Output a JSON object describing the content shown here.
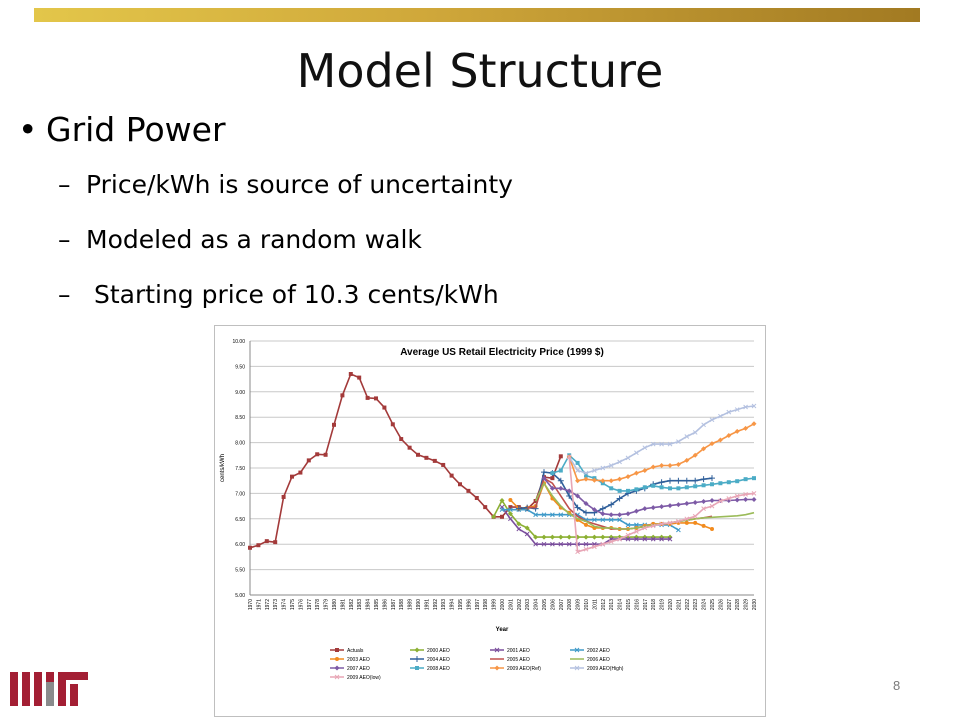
{
  "slide": {
    "title": "Model Structure",
    "bullet": "Grid Power",
    "subbullets": [
      "Price/kWh is source of uncertainty",
      "Modeled as a random walk",
      " Starting price of 10.3 cents/kWh"
    ],
    "page_number": "8",
    "bar_color": "#c9a53a",
    "logo_color": "#a31f34",
    "logo_gray": "#8a8b8c"
  },
  "chart_data": {
    "type": "line",
    "title": "Average  US Retail Electricity Price (1999 $)",
    "xlabel": "Year",
    "ylabel": "cents/kWh",
    "ylim": [
      5.0,
      10.0
    ],
    "yticks": [
      "5.00",
      "5.50",
      "6.00",
      "6.50",
      "7.00",
      "7.50",
      "8.00",
      "8.50",
      "9.00",
      "9.50",
      "10.00"
    ],
    "xlim": [
      1970,
      2030
    ],
    "xticks": [
      "1970",
      "1971",
      "1972",
      "1973",
      "1974",
      "1975",
      "1976",
      "1977",
      "1978",
      "1979",
      "1980",
      "1981",
      "1982",
      "1983",
      "1984",
      "1985",
      "1986",
      "1987",
      "1988",
      "1989",
      "1990",
      "1991",
      "1992",
      "1993",
      "1994",
      "1995",
      "1996",
      "1997",
      "1998",
      "1999",
      "2000",
      "2001",
      "2002",
      "2003",
      "2004",
      "2005",
      "2006",
      "2007",
      "2008",
      "2009",
      "2010",
      "2011",
      "2012",
      "2013",
      "2014",
      "2015",
      "2016",
      "2017",
      "2018",
      "2019",
      "2020",
      "2021",
      "2022",
      "2023",
      "2024",
      "2025",
      "2026",
      "2027",
      "2028",
      "2029",
      "2030"
    ],
    "grid": true,
    "legend_placement": "bottom",
    "series": [
      {
        "name": "Actuals",
        "color": "#a33a3a",
        "marker": "square",
        "x": [
          1970,
          1971,
          1972,
          1973,
          1974,
          1975,
          1976,
          1977,
          1978,
          1979,
          1980,
          1981,
          1982,
          1983,
          1984,
          1985,
          1986,
          1987,
          1988,
          1989,
          1990,
          1991,
          1992,
          1993,
          1994,
          1995,
          1996,
          1997,
          1998,
          1999,
          2000,
          2001,
          2002,
          2003,
          2004,
          2005,
          2006,
          2007
        ],
        "y": [
          5.93,
          5.98,
          6.06,
          6.04,
          6.93,
          7.33,
          7.41,
          7.65,
          7.77,
          7.76,
          8.35,
          8.93,
          9.35,
          9.28,
          8.88,
          8.87,
          8.69,
          8.36,
          8.07,
          7.9,
          7.76,
          7.7,
          7.64,
          7.56,
          7.35,
          7.18,
          7.05,
          6.91,
          6.73,
          6.54,
          6.54,
          6.73,
          6.73,
          6.69,
          6.85,
          7.32,
          7.3,
          7.73
        ]
      },
      {
        "name": "2000 AEO",
        "color": "#8cb033",
        "marker": "diamond",
        "x": [
          1999,
          2000,
          2001,
          2002,
          2003,
          2004,
          2005,
          2006,
          2007,
          2008,
          2009,
          2010,
          2011,
          2012,
          2013,
          2014,
          2015,
          2016,
          2017,
          2018,
          2019,
          2020
        ],
        "y": [
          6.54,
          6.86,
          6.6,
          6.4,
          6.32,
          6.14,
          6.14,
          6.14,
          6.14,
          6.14,
          6.14,
          6.14,
          6.14,
          6.14,
          6.14,
          6.14,
          6.14,
          6.14,
          6.14,
          6.14,
          6.14,
          6.14
        ]
      },
      {
        "name": "2001 AEO",
        "color": "#7a4e9c",
        "marker": "x",
        "x": [
          2000,
          2001,
          2002,
          2003,
          2004,
          2005,
          2006,
          2007,
          2008,
          2009,
          2010,
          2011,
          2012,
          2013,
          2014,
          2015,
          2016,
          2017,
          2018,
          2019,
          2020
        ],
        "y": [
          6.73,
          6.5,
          6.3,
          6.2,
          6.0,
          6.0,
          6.0,
          6.0,
          6.0,
          6.0,
          6.0,
          6.0,
          6.0,
          6.1,
          6.1,
          6.1,
          6.1,
          6.1,
          6.1,
          6.1,
          6.1
        ]
      },
      {
        "name": "2002 AEO",
        "color": "#3f9ac9",
        "marker": "x",
        "x": [
          2000,
          2001,
          2002,
          2003,
          2004,
          2005,
          2006,
          2007,
          2008,
          2009,
          2010,
          2011,
          2012,
          2013,
          2014,
          2015,
          2016,
          2017,
          2018,
          2019,
          2020,
          2021
        ],
        "y": [
          6.68,
          6.68,
          6.68,
          6.68,
          6.58,
          6.58,
          6.58,
          6.58,
          6.58,
          6.58,
          6.48,
          6.48,
          6.48,
          6.48,
          6.48,
          6.38,
          6.38,
          6.38,
          6.38,
          6.38,
          6.38,
          6.28
        ]
      },
      {
        "name": "2003 AEO",
        "color": "#f28b1e",
        "marker": "circle",
        "x": [
          2001,
          2002,
          2003,
          2004,
          2005,
          2006,
          2007,
          2008,
          2009,
          2010,
          2011,
          2012,
          2013,
          2014,
          2015,
          2016,
          2017,
          2018,
          2019,
          2020,
          2021,
          2022,
          2023,
          2024,
          2025
        ],
        "y": [
          6.87,
          6.7,
          6.72,
          6.75,
          7.2,
          6.9,
          6.72,
          6.62,
          6.48,
          6.38,
          6.32,
          6.32,
          6.32,
          6.3,
          6.3,
          6.32,
          6.36,
          6.4,
          6.4,
          6.4,
          6.42,
          6.42,
          6.42,
          6.36,
          6.3
        ]
      },
      {
        "name": "2004 AEO",
        "color": "#2f5f9a",
        "marker": "plus",
        "x": [
          2002,
          2003,
          2004,
          2005,
          2006,
          2007,
          2008,
          2009,
          2010,
          2011,
          2012,
          2013,
          2014,
          2015,
          2016,
          2017,
          2018,
          2019,
          2020,
          2021,
          2022,
          2023,
          2024,
          2025
        ],
        "y": [
          6.7,
          6.72,
          6.7,
          7.42,
          7.4,
          7.25,
          6.95,
          6.72,
          6.62,
          6.62,
          6.7,
          6.78,
          6.9,
          7.0,
          7.05,
          7.1,
          7.18,
          7.22,
          7.25,
          7.25,
          7.25,
          7.25,
          7.28,
          7.3
        ]
      },
      {
        "name": "2005 AEO",
        "color": "#c0504d",
        "marker": "none",
        "x": [
          2003,
          2004,
          2005,
          2006,
          2007,
          2008,
          2009,
          2010,
          2011,
          2012,
          2013,
          2014,
          2015,
          2016,
          2017,
          2018,
          2019,
          2020,
          2021,
          2022,
          2023,
          2024,
          2025
        ],
        "y": [
          6.72,
          6.72,
          7.3,
          7.2,
          6.95,
          6.7,
          6.55,
          6.45,
          6.4,
          6.35,
          6.3,
          6.3,
          6.3,
          6.32,
          6.35,
          6.38,
          6.4,
          6.42,
          6.45,
          6.47,
          6.5,
          6.52,
          6.55
        ]
      },
      {
        "name": "2006 AEO",
        "color": "#9bbb59",
        "marker": "none",
        "x": [
          2004,
          2005,
          2006,
          2007,
          2008,
          2009,
          2010,
          2011,
          2012,
          2013,
          2014,
          2015,
          2016,
          2017,
          2018,
          2019,
          2020,
          2021,
          2022,
          2023,
          2024,
          2025,
          2026,
          2027,
          2028,
          2029,
          2030
        ],
        "y": [
          6.85,
          7.2,
          6.95,
          6.75,
          6.6,
          6.5,
          6.45,
          6.35,
          6.32,
          6.32,
          6.3,
          6.3,
          6.32,
          6.35,
          6.38,
          6.4,
          6.42,
          6.45,
          6.47,
          6.5,
          6.52,
          6.53,
          6.54,
          6.55,
          6.56,
          6.58,
          6.62
        ]
      },
      {
        "name": "2007 AEO",
        "color": "#7d5aa6",
        "marker": "diamond",
        "x": [
          2005,
          2006,
          2007,
          2008,
          2009,
          2010,
          2011,
          2012,
          2013,
          2014,
          2015,
          2016,
          2017,
          2018,
          2019,
          2020,
          2021,
          2022,
          2023,
          2024,
          2025,
          2026,
          2027,
          2028,
          2029,
          2030
        ],
        "y": [
          7.3,
          7.1,
          7.1,
          7.05,
          6.95,
          6.8,
          6.68,
          6.6,
          6.58,
          6.58,
          6.6,
          6.65,
          6.7,
          6.72,
          6.74,
          6.76,
          6.78,
          6.8,
          6.82,
          6.84,
          6.86,
          6.86,
          6.86,
          6.87,
          6.88,
          6.88
        ]
      },
      {
        "name": "2008 AEO",
        "color": "#4bacc6",
        "marker": "square",
        "x": [
          2006,
          2007,
          2008,
          2009,
          2010,
          2011,
          2012,
          2013,
          2014,
          2015,
          2016,
          2017,
          2018,
          2019,
          2020,
          2021,
          2022,
          2023,
          2024,
          2025,
          2026,
          2027,
          2028,
          2029,
          2030
        ],
        "y": [
          7.4,
          7.45,
          7.75,
          7.6,
          7.35,
          7.3,
          7.2,
          7.1,
          7.05,
          7.05,
          7.08,
          7.12,
          7.15,
          7.12,
          7.1,
          7.1,
          7.12,
          7.14,
          7.16,
          7.18,
          7.2,
          7.22,
          7.24,
          7.28,
          7.3
        ]
      },
      {
        "name": "2009 AEO(Ref)",
        "color": "#f79646",
        "marker": "diamond",
        "x": [
          2008,
          2009,
          2010,
          2011,
          2012,
          2013,
          2014,
          2015,
          2016,
          2017,
          2018,
          2019,
          2020,
          2021,
          2022,
          2023,
          2024,
          2025,
          2026,
          2027,
          2028,
          2029,
          2030
        ],
        "y": [
          7.72,
          7.25,
          7.28,
          7.26,
          7.25,
          7.25,
          7.28,
          7.33,
          7.4,
          7.45,
          7.52,
          7.55,
          7.55,
          7.57,
          7.65,
          7.75,
          7.88,
          7.98,
          8.05,
          8.14,
          8.22,
          8.28,
          8.37
        ]
      },
      {
        "name": "2009 AEO(High)",
        "color": "#b4c1e0",
        "marker": "x",
        "x": [
          2008,
          2009,
          2010,
          2011,
          2012,
          2013,
          2014,
          2015,
          2016,
          2017,
          2018,
          2019,
          2020,
          2021,
          2022,
          2023,
          2024,
          2025,
          2026,
          2027,
          2028,
          2029,
          2030
        ],
        "y": [
          7.72,
          7.45,
          7.4,
          7.45,
          7.5,
          7.55,
          7.62,
          7.7,
          7.8,
          7.9,
          7.97,
          7.97,
          7.97,
          8.02,
          8.12,
          8.2,
          8.35,
          8.45,
          8.52,
          8.6,
          8.65,
          8.7,
          8.72
        ]
      },
      {
        "name": "2009 AEO(low)",
        "color": "#e8a6b6",
        "marker": "x",
        "x": [
          2008,
          2009,
          2010,
          2011,
          2012,
          2013,
          2014,
          2015,
          2016,
          2017,
          2018,
          2019,
          2020,
          2021,
          2022,
          2023,
          2024,
          2025,
          2026,
          2027,
          2028,
          2029,
          2030
        ],
        "y": [
          7.72,
          5.85,
          5.9,
          5.95,
          6.0,
          6.05,
          6.1,
          6.18,
          6.25,
          6.32,
          6.36,
          6.4,
          6.42,
          6.45,
          6.5,
          6.55,
          6.7,
          6.75,
          6.85,
          6.9,
          6.95,
          6.98,
          7.0
        ]
      }
    ]
  }
}
